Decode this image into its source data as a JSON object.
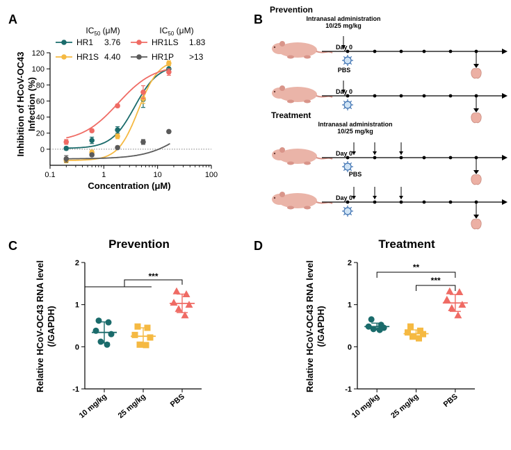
{
  "panels": {
    "A": "A",
    "B": "B",
    "C": "C",
    "D": "D"
  },
  "chart_data": [
    {
      "type": "line",
      "panel": "A",
      "xlabel": "Concentration (μM)",
      "ylabel": "Inhibition of HCoV-OC43 Infection (%)",
      "ylabel_lines": [
        "Inhibition of HCoV-OC43",
        "Infection (%)"
      ],
      "xscale": "log",
      "xlim": [
        0.1,
        100
      ],
      "ylim": [
        -20,
        120
      ],
      "xticks": [
        "0.1",
        "1",
        "10",
        "100"
      ],
      "yticks": [
        "0",
        "20",
        "40",
        "60",
        "80",
        "100",
        "120"
      ],
      "legend_header": "IC50 (μM)",
      "legend_header_parts": [
        "IC",
        "50",
        " (μM)"
      ],
      "x": [
        0.2,
        0.6,
        1.8,
        5.4,
        16.2
      ],
      "series": [
        {
          "name": "HR1",
          "ic50": "3.76",
          "color": "#1a6b6b",
          "values": [
            1,
            11,
            24,
            62,
            100
          ],
          "err": [
            2,
            4,
            4,
            10,
            4
          ],
          "fit_ic50": 3.76,
          "fit_hill": 2.0,
          "fit_top": 105
        },
        {
          "name": "HR1S",
          "ic50": "4.40",
          "color": "#f5b942",
          "values": [
            -14,
            -4,
            16,
            63,
            107
          ],
          "err": [
            3,
            3,
            3,
            6,
            3
          ],
          "fit_ic50": 4.4,
          "fit_hill": 2.3,
          "fit_top": 112
        },
        {
          "name": "HR1LS",
          "ic50": "1.83",
          "color": "#ef6b64",
          "values": [
            9,
            23,
            54,
            71,
            96
          ],
          "err": [
            3,
            2,
            2,
            8,
            4
          ],
          "fit_ic50": 1.83,
          "fit_hill": 1.3,
          "fit_top": 105
        },
        {
          "name": "HR1P",
          "ic50": ">13",
          "color": "#5a5a5a",
          "values": [
            -12,
            -7,
            2,
            9,
            22
          ],
          "err": [
            4,
            2,
            2,
            3,
            1
          ],
          "fit_ic50": 40,
          "fit_hill": 1.2,
          "fit_top": 60
        }
      ]
    },
    {
      "type": "scatter",
      "panel": "C",
      "title": "Prevention",
      "ylabel": "Relative HCoV-OC43 RNA level (/GAPDH)",
      "ylabel_lines": [
        "Relative HCoV-OC43 RNA level",
        "(/GAPDH)"
      ],
      "categories": [
        "10 mg/kg",
        "25 mg/kg",
        "PBS"
      ],
      "ylim": [
        -1,
        2
      ],
      "yticks": [
        "-1",
        "0",
        "1",
        "2"
      ],
      "groups": [
        {
          "color": "#1a6b6b",
          "marker": "circle",
          "points": [
            0.62,
            0.58,
            0.38,
            0.3,
            0.12,
            0.05
          ],
          "mean": 0.34,
          "sd": 0.25
        },
        {
          "color": "#f5b942",
          "marker": "square",
          "points": [
            0.48,
            0.45,
            0.28,
            0.22,
            0.05,
            0.04
          ],
          "mean": 0.25,
          "sd": 0.2
        },
        {
          "color": "#ef6b64",
          "marker": "triangle",
          "points": [
            1.32,
            1.25,
            1.05,
            1.0,
            0.9,
            0.75
          ],
          "mean": 1.03,
          "sd": 0.22
        }
      ],
      "significance": [
        "***"
      ]
    },
    {
      "type": "scatter",
      "panel": "D",
      "title": "Treatment",
      "ylabel": "Relative HCoV-OC43 RNA level (/GAPDH)",
      "ylabel_lines": [
        "Relative HCoV-OC43 RNA level",
        "(/GAPDH)"
      ],
      "categories": [
        "10 mg/kg",
        "25 mg/kg",
        "PBS"
      ],
      "ylim": [
        -1,
        2
      ],
      "yticks": [
        "-1",
        "0",
        "1",
        "2"
      ],
      "groups": [
        {
          "color": "#1a6b6b",
          "marker": "circle",
          "points": [
            0.65,
            0.52,
            0.48,
            0.45,
            0.42,
            0.4
          ],
          "mean": 0.48,
          "sd": 0.08
        },
        {
          "color": "#f5b942",
          "marker": "square",
          "points": [
            0.48,
            0.38,
            0.34,
            0.3,
            0.24,
            0.2
          ],
          "mean": 0.31,
          "sd": 0.09
        },
        {
          "color": "#ef6b64",
          "marker": "triangle",
          "points": [
            1.32,
            1.3,
            1.12,
            1.0,
            0.92,
            0.75
          ],
          "mean": 1.04,
          "sd": 0.2
        }
      ],
      "significance": [
        "**",
        "***"
      ]
    }
  ],
  "diagram_B": {
    "prevention_label": "Prevention",
    "treatment_label": "Treatment",
    "intranasal_label": "Intranasal administration",
    "dose_label": "10/25 mg/kg",
    "pbs_label": "PBS",
    "day0_label": "Day 0"
  }
}
